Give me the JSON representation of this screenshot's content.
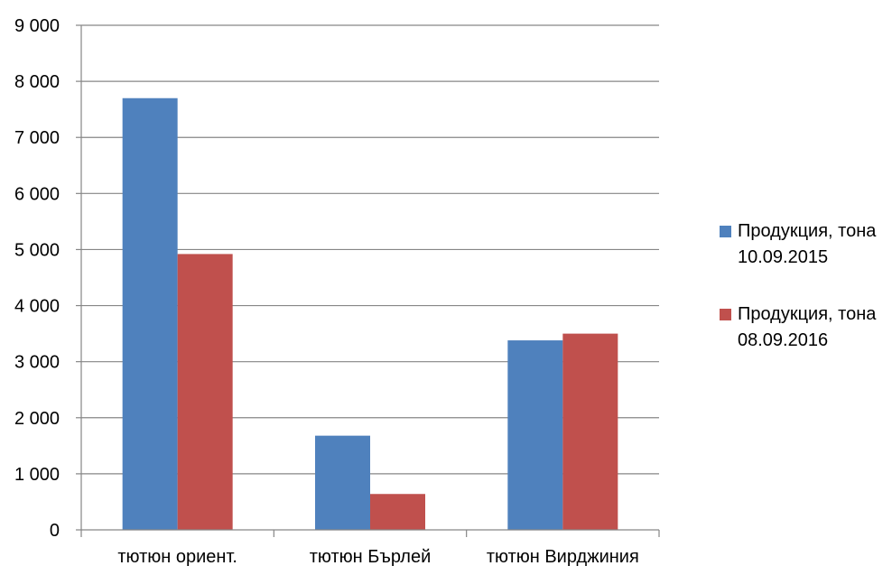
{
  "chart_data": {
    "type": "bar",
    "title": "",
    "xlabel": "",
    "ylabel": "",
    "categories": [
      "тютюн ориент.",
      "тютюн Бърлей",
      "тютюн Вирджиния"
    ],
    "series": [
      {
        "name": "Продукция, тона 10.09.2015",
        "name_lines": [
          "Продукция, тона",
          "10.09.2015"
        ],
        "color": "#4F81BD",
        "values": [
          7700,
          1680,
          3380
        ]
      },
      {
        "name": "Продукция, тона 08.09.2016",
        "name_lines": [
          "Продукция, тона",
          "08.09.2016"
        ],
        "color": "#C0504D",
        "values": [
          4920,
          640,
          3500
        ]
      }
    ],
    "ylim": [
      0,
      9000
    ],
    "yticks": [
      0,
      1000,
      2000,
      3000,
      4000,
      5000,
      6000,
      7000,
      8000,
      9000
    ],
    "ytick_labels": [
      "0",
      "1 000",
      "2 000",
      "3 000",
      "4 000",
      "5 000",
      "6 000",
      "7 000",
      "8 000",
      "9 000"
    ],
    "grid": true,
    "legend_position": "right"
  }
}
